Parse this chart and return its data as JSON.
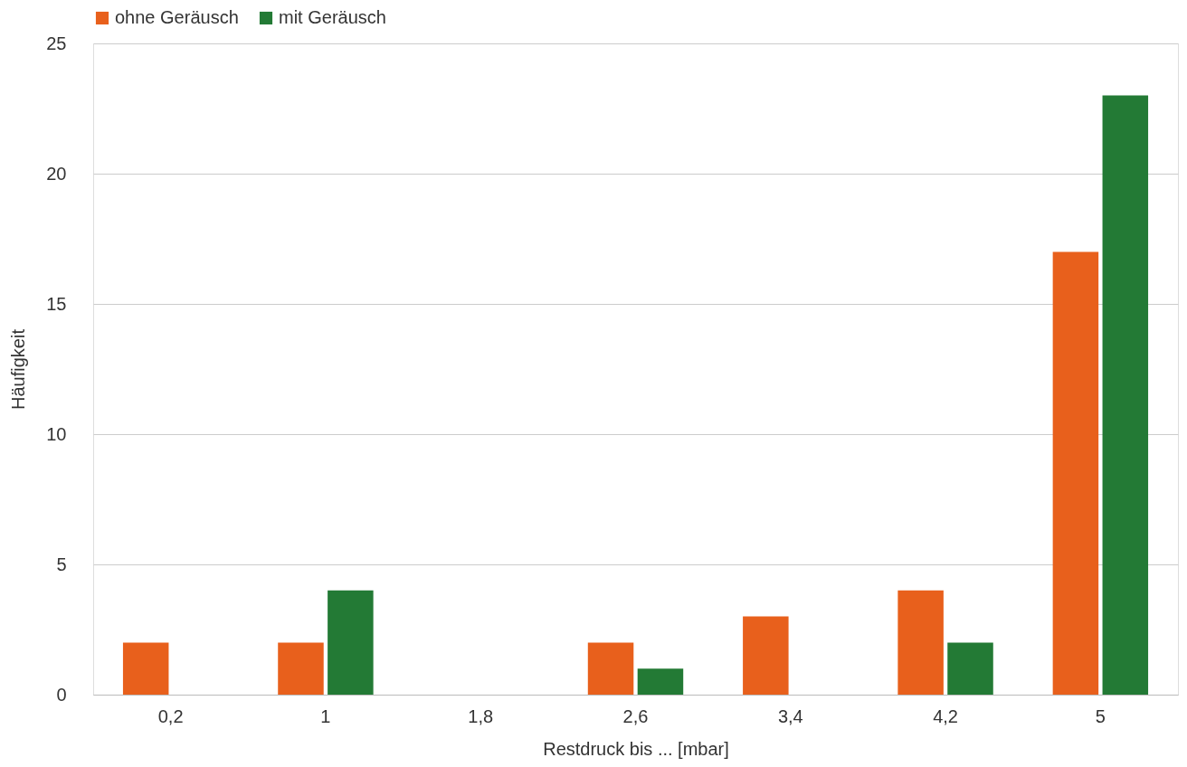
{
  "chart_data": {
    "type": "bar",
    "xlabel": "Restdruck bis ... [mbar]",
    "ylabel": "Häufigkeit",
    "categories": [
      "0,2",
      "1",
      "1,8",
      "2,6",
      "3,4",
      "4,2",
      "5"
    ],
    "series": [
      {
        "name": "ohne Geräusch",
        "color": "#e8601c",
        "values": [
          2,
          2,
          0,
          2,
          3,
          4,
          17
        ]
      },
      {
        "name": "mit Geräusch",
        "color": "#237a35",
        "values": [
          0,
          4,
          0,
          1,
          0,
          2,
          23
        ]
      }
    ],
    "ylim": [
      0,
      25
    ],
    "yticks": [
      0,
      5,
      10,
      15,
      20,
      25
    ],
    "grid": "y",
    "legend": "top"
  }
}
